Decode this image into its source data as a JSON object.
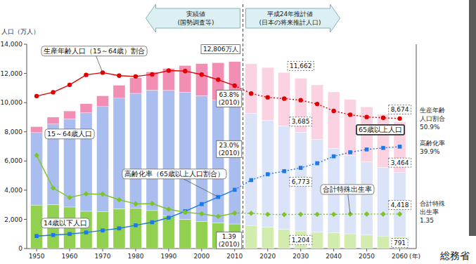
{
  "chart_data": {
    "type": "bar",
    "stacked": true,
    "grid": false,
    "y_label": "人口（万人）",
    "x_label": "(年)",
    "source": "総務省",
    "x": [
      1950,
      1955,
      1960,
      1965,
      1970,
      1975,
      1980,
      1985,
      1990,
      1995,
      2000,
      2005,
      2010,
      2015,
      2020,
      2025,
      2030,
      2035,
      2040,
      2045,
      2050,
      2055,
      2060
    ],
    "xlim": [
      1947,
      2065
    ],
    "xticks": [
      1950,
      1960,
      1970,
      1980,
      1990,
      2000,
      2010,
      2020,
      2030,
      2040,
      2050,
      2060
    ],
    "ylim": [
      0,
      14000
    ],
    "yticks": [
      0,
      {
        "value": 2000,
        "label": "2,000"
      },
      {
        "value": 4000,
        "label": "4,000"
      },
      {
        "value": 6000,
        "label": "6,000"
      },
      {
        "value": 8000,
        "label": "8,000"
      },
      {
        "value": 10000,
        "label": "10,000"
      },
      {
        "value": 12000,
        "label": "12,000"
      },
      {
        "value": 14000,
        "label": "14,000"
      }
    ],
    "y2lim": [
      0,
      80
    ],
    "y3lim": [
      0,
      8
    ],
    "periods": [
      {
        "label": [
          "実績値",
          "(国勢調査等)"
        ],
        "from": 1950,
        "to": 2010,
        "line_style": "solid"
      },
      {
        "label": [
          "平成24年推計値",
          "(日本の将来推計人口)"
        ],
        "from": 2015,
        "to": 2060,
        "line_style": "dotted"
      }
    ],
    "total_labels": [
      {
        "index": 12,
        "value": 12806,
        "label": "12,806万人"
      },
      {
        "index": 16,
        "value": 11662,
        "label": "11,662"
      },
      {
        "index": 22,
        "value": 8674,
        "label": "8,674"
      }
    ],
    "series": [
      {
        "name": "14歳以下人口",
        "type": "bar",
        "colors": [
          "#92d050",
          "#92d050",
          "#92d050",
          "#92d050",
          "#92d050",
          "#92d050",
          "#92d050",
          "#92d050",
          "#92d050",
          "#92d050",
          "#92d050",
          "#92d050",
          "#92d050",
          "#d2ecae",
          "#d2ecae",
          "#d2ecae",
          "#d2ecae",
          "#d2ecae",
          "#d2ecae",
          "#d2ecae",
          "#d2ecae",
          "#d2ecae",
          "#d2ecae"
        ],
        "values": [
          2979,
          3012,
          2843,
          2553,
          2515,
          2722,
          2751,
          2603,
          2249,
          2001,
          1847,
          1752,
          1684,
          1583,
          1457,
          1324,
          1204,
          1129,
          1073,
          1012,
          939,
          861,
          791
        ],
        "point_labels": [
          {
            "index": 16,
            "label": "1,204"
          },
          {
            "index": 22,
            "label": "791"
          }
        ]
      },
      {
        "name": "15～64歳人口",
        "type": "bar",
        "colors": [
          "#a9bdee",
          "#a9bdee",
          "#a9bdee",
          "#a9bdee",
          "#a9bdee",
          "#a9bdee",
          "#a9bdee",
          "#a9bdee",
          "#a9bdee",
          "#a9bdee",
          "#a9bdee",
          "#a9bdee",
          "#a9bdee",
          "#dae3f8",
          "#dae3f8",
          "#dae3f8",
          "#dae3f8",
          "#dae3f8",
          "#dae3f8",
          "#dae3f8",
          "#dae3f8",
          "#dae3f8",
          "#dae3f8"
        ],
        "values": [
          4966,
          5517,
          6047,
          6744,
          7212,
          7581,
          7883,
          8251,
          8590,
          8716,
          8622,
          8409,
          8173,
          7682,
          7341,
          7085,
          6773,
          6343,
          5787,
          5353,
          5001,
          4706,
          4418
        ],
        "point_labels": [
          {
            "index": 16,
            "label": "6,773"
          },
          {
            "index": 22,
            "label": "4,418"
          }
        ]
      },
      {
        "name": "65歳以上人口",
        "type": "bar",
        "colors": [
          "#f28db3",
          "#f28db3",
          "#f28db3",
          "#f28db3",
          "#f28db3",
          "#f28db3",
          "#f28db3",
          "#f28db3",
          "#f28db3",
          "#f28db3",
          "#f28db3",
          "#f28db3",
          "#f28db3",
          "#fad2e1",
          "#fad2e1",
          "#fad2e1",
          "#fad2e1",
          "#fad2e1",
          "#fad2e1",
          "#fad2e1",
          "#fad2e1",
          "#fad2e1",
          "#fad2e1"
        ],
        "values": [
          411,
          475,
          535,
          624,
          739,
          887,
          1065,
          1247,
          1493,
          1826,
          2204,
          2576,
          2948,
          3395,
          3612,
          3657,
          3685,
          3741,
          3868,
          3856,
          3768,
          3626,
          3464
        ],
        "point_labels": [
          {
            "index": 16,
            "label": "3,685"
          },
          {
            "index": 22,
            "label": "3,464"
          }
        ]
      },
      {
        "name": "生産年齢人口（15～64歳）割合",
        "type": "line",
        "axis": "y2",
        "color": "#e00000",
        "marker": "circle",
        "values": [
          59.7,
          61.2,
          64.1,
          68.0,
          68.9,
          67.7,
          67.4,
          68.2,
          69.7,
          69.5,
          68.1,
          66.1,
          63.8,
          60.7,
          59.2,
          58.7,
          58.1,
          56.6,
          53.9,
          52.4,
          51.5,
          51.2,
          50.9
        ],
        "point_labels": [
          {
            "index": 12,
            "lines": [
              "63.8%",
              "(2010)"
            ]
          },
          {
            "index": 22,
            "lines": [
              "生産年齢",
              "人口割合",
              "50.9%"
            ]
          }
        ]
      },
      {
        "name": "高齢化率（65歳以上人口割合）",
        "type": "line",
        "axis": "y2",
        "color": "#1e78e6",
        "marker": "square",
        "values": [
          4.9,
          5.3,
          5.7,
          6.3,
          7.1,
          7.9,
          9.1,
          10.3,
          12.1,
          14.6,
          17.4,
          20.2,
          23.0,
          26.8,
          29.1,
          30.3,
          31.6,
          33.4,
          36.1,
          37.7,
          38.8,
          39.4,
          39.9
        ],
        "point_labels": [
          {
            "index": 12,
            "lines": [
              "23.0%",
              "(2010)"
            ]
          },
          {
            "index": 22,
            "lines": [
              "高齢化率",
              "39.9%"
            ]
          }
        ]
      },
      {
        "name": "合計特殊出生率",
        "type": "line",
        "axis": "y3",
        "color": "#7cc520",
        "marker": "diamond",
        "values": [
          3.65,
          2.37,
          2.0,
          2.14,
          2.13,
          1.91,
          1.75,
          1.76,
          1.54,
          1.42,
          1.36,
          1.26,
          1.39,
          1.38,
          1.34,
          1.33,
          1.34,
          1.34,
          1.34,
          1.35,
          1.35,
          1.35,
          1.35
        ],
        "point_labels": [
          {
            "index": 12,
            "lines": [
              "1.39",
              "(2010)"
            ]
          },
          {
            "index": 22,
            "lines": [
              "合計特殊",
              "出生率",
              "1.35"
            ]
          }
        ]
      }
    ]
  }
}
